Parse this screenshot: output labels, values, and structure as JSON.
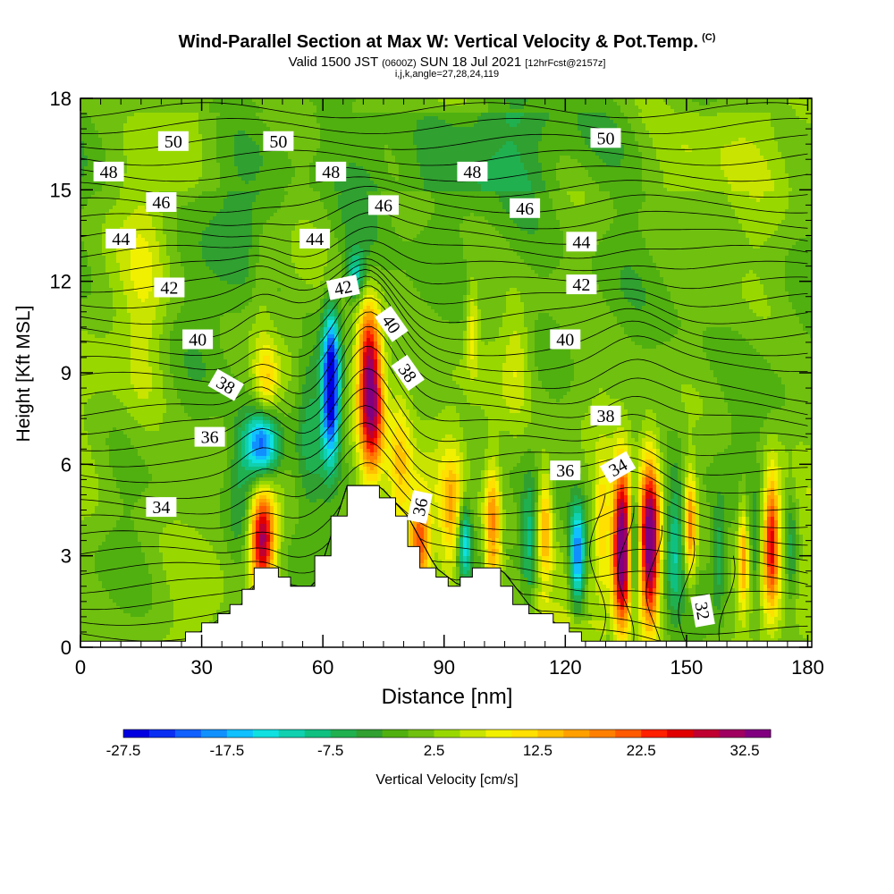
{
  "header": {
    "title": "Wind-Parallel Section at Max W: Vertical Velocity & Pot.Temp.",
    "copyright": "(C)",
    "subtitle_main": "Valid 1500 JST",
    "subtitle_z": "(0600Z)",
    "subtitle_date": "SUN 18 Jul 2021",
    "subtitle_fcst": "[12hrFcst@2157z]",
    "params": "i,j,k,angle=27,28,24,119"
  },
  "chart_data": {
    "type": "heatmap",
    "xlabel": "Distance [nm]",
    "ylabel": "Height [Kft MSL]",
    "colorbar_label": "Vertical Velocity [cm/s]",
    "xlim": [
      0,
      181
    ],
    "ylim": [
      0,
      18
    ],
    "x_ticks": [
      0,
      30,
      60,
      90,
      120,
      150,
      180
    ],
    "x_tick_labels": [
      "0",
      "30",
      "60",
      "90",
      "120",
      "150",
      "180"
    ],
    "y_ticks": [
      0,
      3,
      6,
      9,
      12,
      15,
      18
    ],
    "y_tick_labels": [
      "0",
      "3",
      "6",
      "9",
      "12",
      "15",
      "18"
    ],
    "colorbar": {
      "min": -27.5,
      "step": 2.5,
      "tick_labels": [
        "-27.5",
        "-17.5",
        "-7.5",
        "2.5",
        "12.5",
        "22.5",
        "32.5"
      ],
      "colors": [
        "#0000e0",
        "#0a2ef2",
        "#1060ff",
        "#1090ff",
        "#10c0ff",
        "#10e0e0",
        "#10d0b0",
        "#10c080",
        "#20b050",
        "#30a030",
        "#50b010",
        "#70c010",
        "#98d800",
        "#c8e400",
        "#f0f000",
        "#ffe000",
        "#ffc000",
        "#ffa000",
        "#ff8000",
        "#ff5a00",
        "#ff2000",
        "#e00000",
        "#c00030",
        "#a00060",
        "#800080"
      ]
    },
    "terrain_profile": [
      [
        0,
        0.2
      ],
      [
        26,
        0.2
      ],
      [
        26,
        0.5
      ],
      [
        30,
        0.5
      ],
      [
        30,
        0.8
      ],
      [
        34,
        0.8
      ],
      [
        34,
        1.1
      ],
      [
        37,
        1.1
      ],
      [
        37,
        1.4
      ],
      [
        40,
        1.4
      ],
      [
        40,
        1.9
      ],
      [
        43,
        1.9
      ],
      [
        43,
        2.6
      ],
      [
        49,
        2.6
      ],
      [
        49,
        2.3
      ],
      [
        52,
        2.3
      ],
      [
        52,
        2.0
      ],
      [
        58,
        2.0
      ],
      [
        58,
        3.0
      ],
      [
        62,
        3.0
      ],
      [
        62,
        4.3
      ],
      [
        66,
        4.3
      ],
      [
        66,
        5.3
      ],
      [
        74,
        5.3
      ],
      [
        74,
        4.9
      ],
      [
        78,
        4.9
      ],
      [
        78,
        4.3
      ],
      [
        81,
        4.3
      ],
      [
        81,
        3.3
      ],
      [
        84,
        3.3
      ],
      [
        84,
        2.6
      ],
      [
        88,
        2.6
      ],
      [
        88,
        2.3
      ],
      [
        91,
        2.3
      ],
      [
        91,
        2.0
      ],
      [
        94,
        2.0
      ],
      [
        94,
        2.3
      ],
      [
        97,
        2.3
      ],
      [
        97,
        2.6
      ],
      [
        104,
        2.6
      ],
      [
        104,
        2.0
      ],
      [
        107,
        2.0
      ],
      [
        107,
        1.4
      ],
      [
        111,
        1.4
      ],
      [
        111,
        1.1
      ],
      [
        117,
        1.1
      ],
      [
        117,
        0.8
      ],
      [
        121,
        0.8
      ],
      [
        121,
        0.5
      ],
      [
        124,
        0.5
      ],
      [
        124,
        0.2
      ],
      [
        180,
        0.2
      ],
      [
        181,
        0.2
      ]
    ],
    "theta_labels": [
      {
        "text": "50",
        "x": 23,
        "y": 16.6,
        "angle": 0
      },
      {
        "text": "50",
        "x": 49,
        "y": 16.6,
        "angle": 0
      },
      {
        "text": "50",
        "x": 130,
        "y": 16.7,
        "angle": 0
      },
      {
        "text": "48",
        "x": 7,
        "y": 15.6,
        "angle": 0
      },
      {
        "text": "48",
        "x": 62,
        "y": 15.6,
        "angle": 0
      },
      {
        "text": "48",
        "x": 97,
        "y": 15.6,
        "angle": 0
      },
      {
        "text": "46",
        "x": 20,
        "y": 14.6,
        "angle": 0
      },
      {
        "text": "46",
        "x": 75,
        "y": 14.5,
        "angle": 0
      },
      {
        "text": "46",
        "x": 110,
        "y": 14.4,
        "angle": 0
      },
      {
        "text": "44",
        "x": 10,
        "y": 13.4,
        "angle": 0
      },
      {
        "text": "44",
        "x": 58,
        "y": 13.4,
        "angle": 0
      },
      {
        "text": "44",
        "x": 124,
        "y": 13.3,
        "angle": 0
      },
      {
        "text": "42",
        "x": 22,
        "y": 11.8,
        "angle": 0
      },
      {
        "text": "42",
        "x": 65,
        "y": 11.8,
        "angle": -12
      },
      {
        "text": "42",
        "x": 124,
        "y": 11.9,
        "angle": 0
      },
      {
        "text": "40",
        "x": 29,
        "y": 10.1,
        "angle": 0
      },
      {
        "text": "40",
        "x": 77,
        "y": 10.6,
        "angle": 55
      },
      {
        "text": "40",
        "x": 120,
        "y": 10.1,
        "angle": 0
      },
      {
        "text": "38",
        "x": 36,
        "y": 8.6,
        "angle": 30
      },
      {
        "text": "38",
        "x": 81,
        "y": 9.0,
        "angle": 55
      },
      {
        "text": "38",
        "x": 130,
        "y": 7.6,
        "angle": 0
      },
      {
        "text": "36",
        "x": 32,
        "y": 6.9,
        "angle": 0
      },
      {
        "text": "36",
        "x": 120,
        "y": 5.8,
        "angle": 0
      },
      {
        "text": "36",
        "x": 84,
        "y": 4.6,
        "angle": -78
      },
      {
        "text": "34",
        "x": 20,
        "y": 4.6,
        "angle": 0
      },
      {
        "text": "34",
        "x": 133,
        "y": 5.9,
        "angle": -30
      },
      {
        "text": "32",
        "x": 154,
        "y": 1.2,
        "angle": 80
      }
    ]
  }
}
